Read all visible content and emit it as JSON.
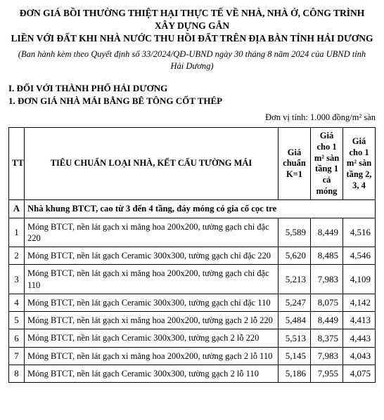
{
  "header": {
    "title_line1": "ĐƠN GIÁ BỒI THƯỜNG THIỆT HẠI THỰC TẾ VỀ NHÀ, NHÀ Ở, CÔNG TRÌNH XÂY DỰNG GẮN",
    "title_line2": "LIỀN VỚI ĐẤT KHI NHÀ NƯỚC THU HỒI ĐẤT TRÊN ĐỊA BÀN TỈNH HẢI DƯƠNG",
    "sub_line1": "(Ban hành kèm theo Quyết định số 33/2024/QĐ-UBND ngày 30 tháng 8 năm 2024 của UBND tỉnh",
    "sub_line2": "Hải Dương)"
  },
  "section1": "I. ĐỐI VỚI THÀNH PHỐ HẢI DƯƠNG",
  "section1_1": "1. ĐƠN GIÁ NHÀ MÁI BẰNG BÊ TÔNG CỐT THÉP",
  "unit_label": "Đơn vị tính: 1.000 đồng/m² sàn",
  "columns": {
    "tt": "TT",
    "desc": "TIÊU CHUẨN LOẠI NHÀ, KẾT CẤU TƯỜNG MÁI",
    "k1": "Giá chuẩn K=1",
    "t1": "Giá cho 1 m² sàn tầng 1 cả móng",
    "t234": "Giá cho 1 m² sàn tầng 2, 3, 4"
  },
  "group": {
    "id": "A",
    "label": "Nhà khung BTCT, cao từ 3 đến 4 tầng, đáy móng có gia cố cọc tre"
  },
  "rows": [
    {
      "tt": "1",
      "desc": "Móng BTCT, nền lát gạch xi măng hoa 200x200, tường gạch chỉ đặc 220",
      "k1": "5,589",
      "t1": "8,449",
      "t234": "4,516"
    },
    {
      "tt": "2",
      "desc": "Móng BTCT, nền lát gạch Ceramic 300x300, tường gạch chỉ đặc 220",
      "k1": "5,620",
      "t1": "8,485",
      "t234": "4,546"
    },
    {
      "tt": "3",
      "desc": "Móng BTCT, nền lát gạch xi măng hoa 200x200, tường gạch chỉ đặc 110",
      "k1": "5,213",
      "t1": "7,983",
      "t234": "4,109"
    },
    {
      "tt": "4",
      "desc": "Móng BTCT, nền lát gạch Ceramic 300x300, tường gạch chỉ đặc 110",
      "k1": "5,247",
      "t1": "8,075",
      "t234": "4,142"
    },
    {
      "tt": "5",
      "desc": "Móng BTCT, nền lát gạch xi măng hoa 200x200, tường gạch 2 lỗ 220",
      "k1": "5,484",
      "t1": "8,449",
      "t234": "4,413"
    },
    {
      "tt": "6",
      "desc": "Móng BTCT, nền lát gạch Ceramic 300x300, tường gạch 2 lỗ 220",
      "k1": "5,513",
      "t1": "8,375",
      "t234": "4,443"
    },
    {
      "tt": "7",
      "desc": "Móng BTCT, nền lát gạch xi măng hoa 200x200, tường gạch 2 lỗ 110",
      "k1": "5,145",
      "t1": "7,983",
      "t234": "4,043"
    },
    {
      "tt": "8",
      "desc": "Móng BTCT, nền lát gạch Ceramic 300x300, tường gạch 2 lỗ 110",
      "k1": "5,186",
      "t1": "7,955",
      "t234": "4,075"
    }
  ]
}
